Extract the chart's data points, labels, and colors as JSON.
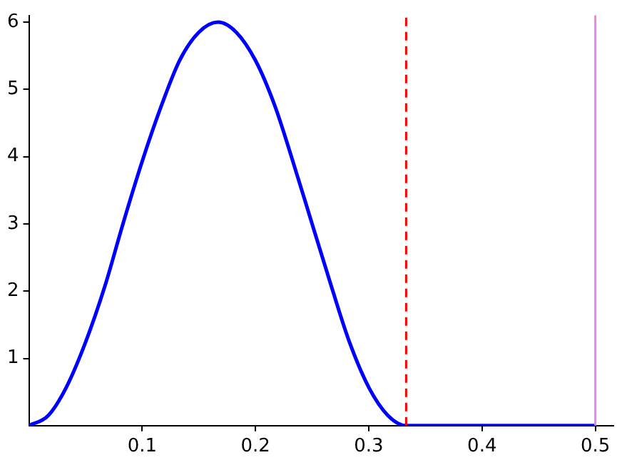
{
  "chart_data": {
    "type": "line",
    "x": [
      0,
      0.017,
      0.033,
      0.05,
      0.067,
      0.083,
      0.1,
      0.117,
      0.133,
      0.15,
      0.167,
      0.183,
      0.2,
      0.217,
      0.233,
      0.25,
      0.267,
      0.283,
      0.3,
      0.317,
      0.333,
      0.5
    ],
    "series": [
      {
        "color": "#0000ff",
        "values": [
          0,
          0.15,
          0.57,
          1.24,
          2.07,
          3,
          3.93,
          4.76,
          5.43,
          5.85,
          6,
          5.85,
          5.43,
          4.76,
          3.93,
          3,
          2.07,
          1.24,
          0.57,
          0.15,
          0,
          0
        ]
      }
    ],
    "xlim": [
      0,
      0.516
    ],
    "ylim": [
      0,
      6.1
    ],
    "xticks": [
      0.1,
      0.2,
      0.3,
      0.4,
      0.5
    ],
    "yticks": [
      1,
      2,
      3,
      4,
      5,
      6
    ],
    "ref_lines": [
      {
        "axis": "x",
        "value": 0.333,
        "color": "#ff0000",
        "line_style": "dashed"
      },
      {
        "axis": "x",
        "value": 0.5,
        "color": "#ee82ee",
        "line_style": "solid"
      }
    ],
    "grid": false,
    "legend": false,
    "marker": "none",
    "line_style": "solid"
  }
}
